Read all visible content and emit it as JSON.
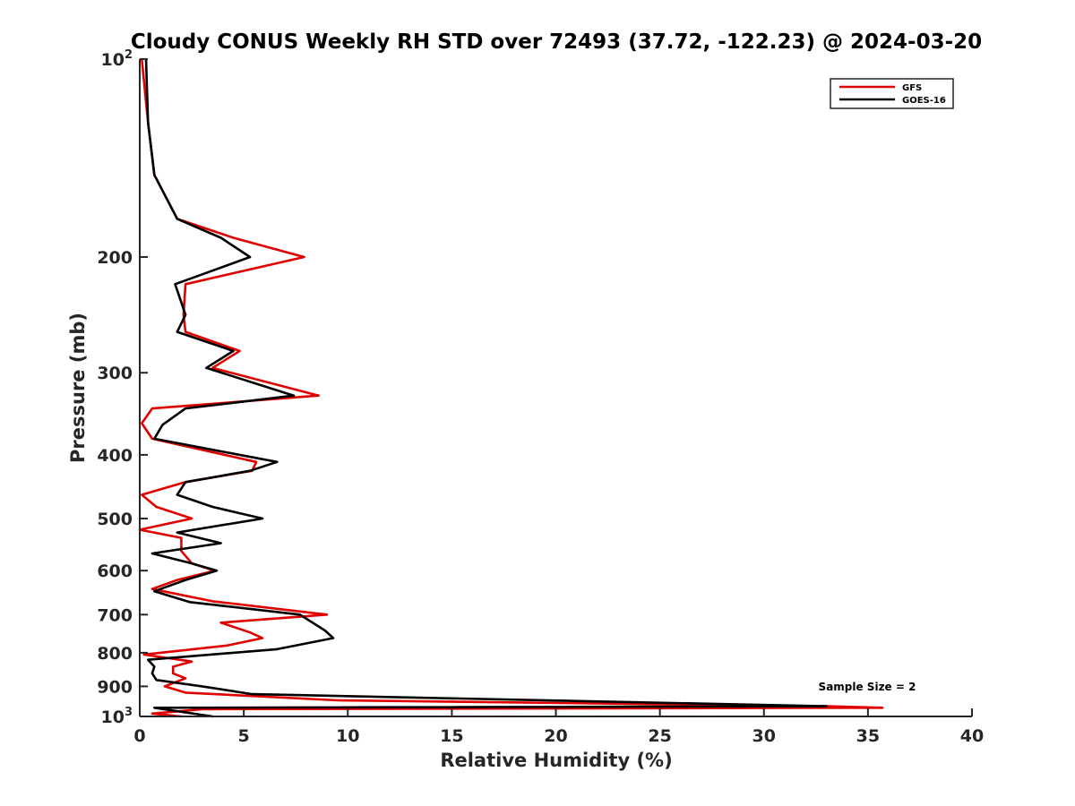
{
  "chart_data": {
    "type": "line",
    "title": "Cloudy CONUS Weekly RH STD over 72493 (37.72, -122.23) @ 2024-03-20",
    "xlabel": "Relative Humidity (%)",
    "ylabel": "Pressure (mb)",
    "xlim": [
      0,
      40
    ],
    "ylim": [
      100,
      1000
    ],
    "y_scale": "log",
    "y_reversed": true,
    "x_ticks": [
      0,
      5,
      10,
      15,
      20,
      25,
      30,
      35,
      40
    ],
    "y_ticks": [
      {
        "value": 100,
        "base": "10",
        "exp": "2"
      },
      {
        "value": 200,
        "label": "200"
      },
      {
        "value": 300,
        "label": "300"
      },
      {
        "value": 400,
        "label": "400"
      },
      {
        "value": 500,
        "label": "500"
      },
      {
        "value": 600,
        "label": "600"
      },
      {
        "value": 700,
        "label": "700"
      },
      {
        "value": 800,
        "label": "800"
      },
      {
        "value": 900,
        "label": "900"
      },
      {
        "value": 1000,
        "base": "10",
        "exp": "3"
      }
    ],
    "grid": false,
    "legend_position": "top-right",
    "annotation": "Sample Size = 2",
    "series": [
      {
        "name": "GFS",
        "color": "#e00000",
        "points": [
          [
            0.1,
            100
          ],
          [
            0.4,
            125
          ],
          [
            0.7,
            150
          ],
          [
            1.8,
            175
          ],
          [
            4.5,
            187
          ],
          [
            7.9,
            200
          ],
          [
            2.2,
            220
          ],
          [
            2.1,
            245
          ],
          [
            2.2,
            260
          ],
          [
            4.8,
            278
          ],
          [
            3.5,
            295
          ],
          [
            8.6,
            325
          ],
          [
            0.6,
            340
          ],
          [
            0.1,
            358
          ],
          [
            0.6,
            378
          ],
          [
            5.6,
            410
          ],
          [
            5.4,
            423
          ],
          [
            2.2,
            440
          ],
          [
            0.1,
            460
          ],
          [
            0.8,
            480
          ],
          [
            2.5,
            500
          ],
          [
            0.0,
            520
          ],
          [
            2.0,
            535
          ],
          [
            2.0,
            560
          ],
          [
            2.5,
            585
          ],
          [
            3.6,
            600
          ],
          [
            1.8,
            620
          ],
          [
            0.6,
            640
          ],
          [
            3.5,
            668
          ],
          [
            9.0,
            700
          ],
          [
            3.9,
            720
          ],
          [
            5.3,
            745
          ],
          [
            5.9,
            760
          ],
          [
            4.2,
            780
          ],
          [
            0.2,
            805
          ],
          [
            2.5,
            825
          ],
          [
            1.6,
            840
          ],
          [
            1.6,
            860
          ],
          [
            2.2,
            875
          ],
          [
            1.2,
            900
          ],
          [
            2.2,
            920
          ],
          [
            9.5,
            945
          ],
          [
            33.0,
            965
          ],
          [
            35.7,
            970
          ],
          [
            3.0,
            975
          ],
          [
            0.6,
            990
          ],
          [
            2.0,
            1000
          ]
        ]
      },
      {
        "name": "GOES-16",
        "color": "#000000",
        "points": [
          [
            0.3,
            100
          ],
          [
            0.4,
            125
          ],
          [
            0.7,
            150
          ],
          [
            1.8,
            175
          ],
          [
            3.9,
            187
          ],
          [
            5.3,
            200
          ],
          [
            1.7,
            220
          ],
          [
            2.2,
            245
          ],
          [
            1.8,
            260
          ],
          [
            4.5,
            278
          ],
          [
            3.2,
            295
          ],
          [
            7.4,
            325
          ],
          [
            2.2,
            340
          ],
          [
            1.1,
            360
          ],
          [
            0.7,
            378
          ],
          [
            6.6,
            410
          ],
          [
            5.3,
            423
          ],
          [
            2.2,
            440
          ],
          [
            1.8,
            460
          ],
          [
            3.5,
            480
          ],
          [
            5.9,
            500
          ],
          [
            1.8,
            525
          ],
          [
            3.9,
            545
          ],
          [
            0.6,
            565
          ],
          [
            2.5,
            585
          ],
          [
            3.7,
            600
          ],
          [
            2.2,
            620
          ],
          [
            0.7,
            645
          ],
          [
            2.4,
            670
          ],
          [
            7.7,
            700
          ],
          [
            8.9,
            740
          ],
          [
            9.3,
            760
          ],
          [
            6.6,
            790
          ],
          [
            0.4,
            820
          ],
          [
            0.7,
            840
          ],
          [
            0.6,
            860
          ],
          [
            0.8,
            880
          ],
          [
            3.0,
            900
          ],
          [
            5.4,
            925
          ],
          [
            33.0,
            965
          ],
          [
            0.7,
            970
          ],
          [
            3.5,
            1000
          ]
        ]
      }
    ]
  }
}
